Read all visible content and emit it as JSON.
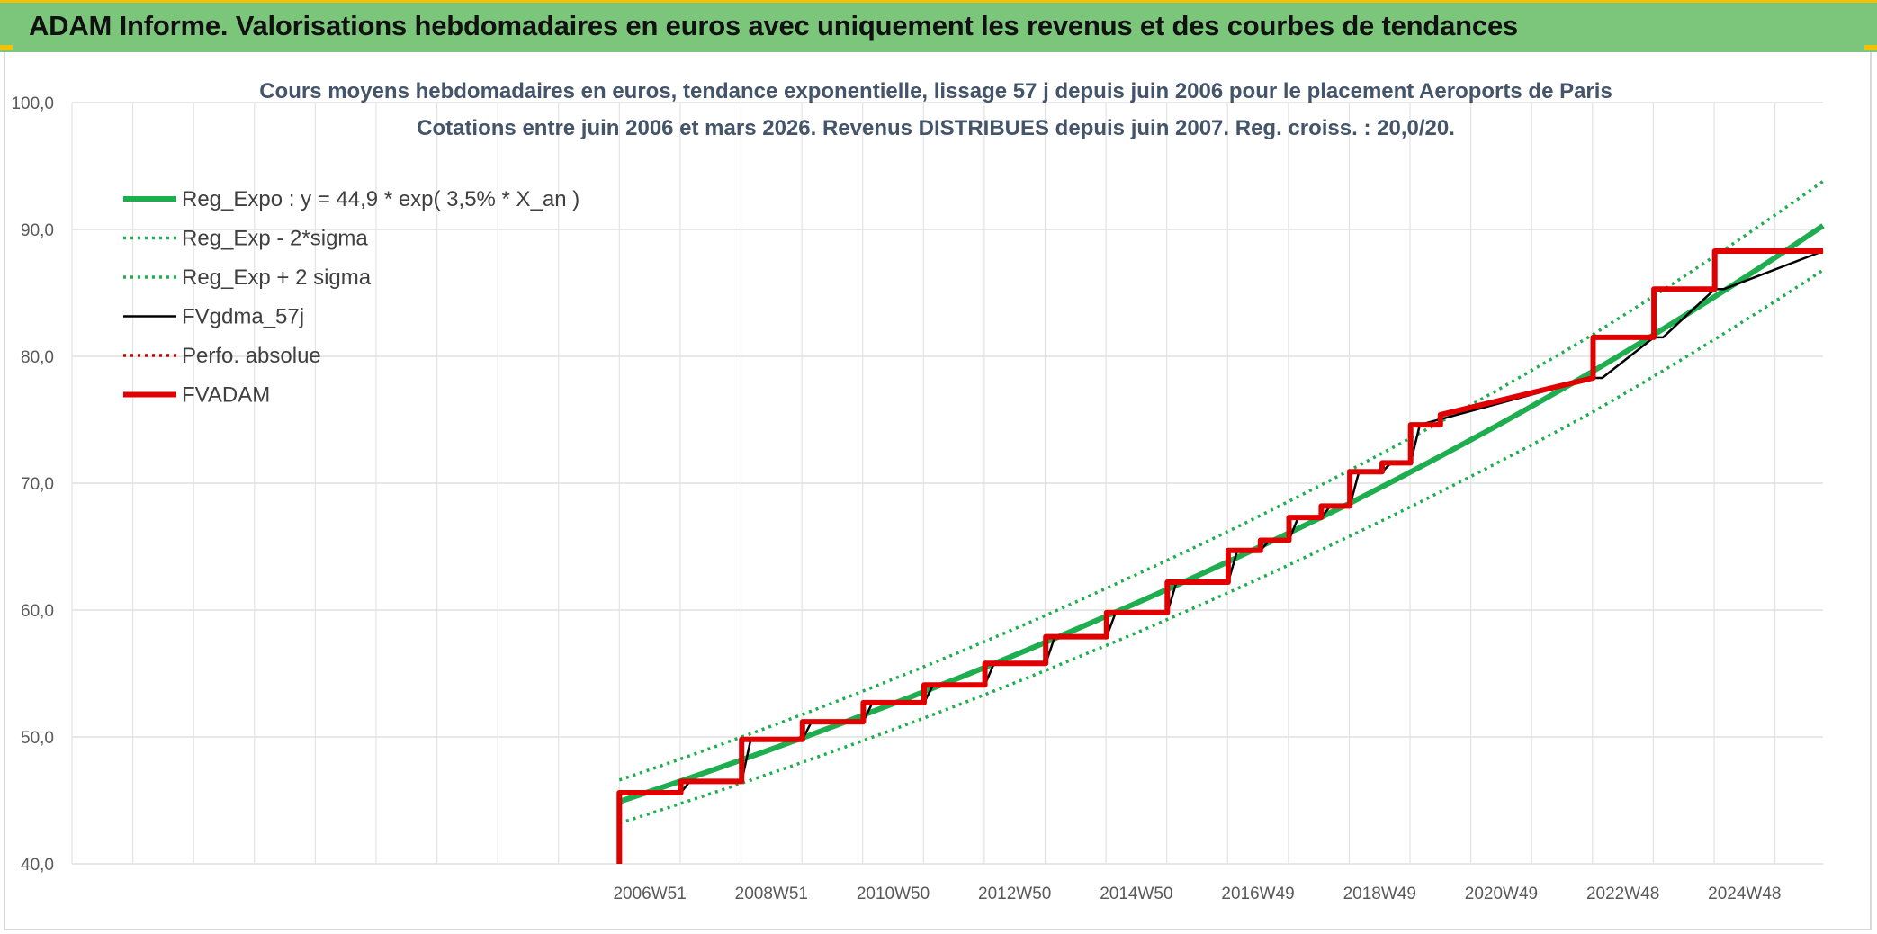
{
  "header": {
    "title": "ADAM Informe. Valorisations hebdomadaires en euros avec uniquement les revenus et des courbes de tendances"
  },
  "chart_data": {
    "type": "line",
    "title": "Cours moyens hebdomadaires en euros, tendance exponentielle, lissage 57 j depuis juin 2006 pour le placement Aeroports de Paris",
    "subtitle": "Cotations entre juin 2006 et mars 2026. Revenus DISTRIBUES depuis juin 2007. Reg. croiss. : 20,0/20.",
    "xlabel": "",
    "ylabel": "",
    "ylim": [
      40,
      100
    ],
    "y_ticks": [
      "40,0",
      "50,0",
      "60,0",
      "70,0",
      "80,0",
      "90,0",
      "100,0"
    ],
    "x_tick_labels": [
      "2006W51",
      "2008W51",
      "2010W50",
      "2012W50",
      "2014W50",
      "2016W49",
      "2018W49",
      "2020W49",
      "2022W48",
      "2024W48"
    ],
    "x_tick_years": [
      2006.96,
      2008.96,
      2010.96,
      2012.96,
      2014.96,
      2016.96,
      2018.96,
      2020.96,
      2022.96,
      2024.96
    ],
    "x_axis_start_year": 1997.46,
    "x_axis_end_year": 2026.25,
    "grid": true,
    "legend_position": "top-left",
    "series": [
      {
        "name": "Reg_Expo : y = 44,9 * exp( 3,5% *  X_an )",
        "color": "#1fae4f",
        "style": "solid-thick",
        "x": [
          2006.46,
          2010.46,
          2014.46,
          2018.46,
          2022.46,
          2026.25
        ],
        "y": [
          44.9,
          51.7,
          59.5,
          68.4,
          78.8,
          90.3
        ]
      },
      {
        "name": "Reg_Exp - 2*sigma",
        "color": "#1fae4f",
        "style": "dotted",
        "x": [
          2006.46,
          2010.46,
          2014.46,
          2018.46,
          2022.46,
          2026.25
        ],
        "y": [
          43.2,
          49.7,
          57.2,
          65.8,
          75.6,
          86.8
        ]
      },
      {
        "name": "Reg_Exp + 2 sigma",
        "color": "#1fae4f",
        "style": "dotted",
        "x": [
          2006.46,
          2010.46,
          2014.46,
          2018.46,
          2022.46,
          2026.25
        ],
        "y": [
          46.6,
          53.6,
          61.7,
          71.0,
          81.7,
          93.8
        ]
      },
      {
        "name": "FVgdma_57j",
        "color": "#000000",
        "style": "solid",
        "x": [
          2006.46,
          2006.55,
          2007.47,
          2007.62,
          2008.47,
          2008.62,
          2009.47,
          2009.62,
          2010.47,
          2010.62,
          2011.47,
          2011.62,
          2012.47,
          2012.62,
          2013.47,
          2013.62,
          2014.47,
          2014.62,
          2015.47,
          2015.62,
          2016.47,
          2016.62,
          2017.0,
          2017.15,
          2017.47,
          2017.62,
          2018.0,
          2018.15,
          2018.47,
          2018.62,
          2019.0,
          2019.15,
          2019.47,
          2019.62,
          2022.47,
          2022.62,
          2023.47,
          2023.62,
          2024.47,
          2024.62,
          2026.25
        ],
        "y": [
          45.6,
          45.6,
          45.6,
          46.5,
          46.5,
          49.8,
          49.8,
          51.2,
          51.2,
          52.7,
          52.7,
          54.1,
          54.1,
          55.8,
          55.8,
          57.9,
          57.9,
          59.8,
          59.8,
          62.2,
          62.2,
          64.7,
          64.7,
          65.5,
          65.5,
          67.3,
          67.3,
          68.2,
          68.2,
          70.9,
          70.9,
          71.6,
          71.6,
          74.6,
          78.3,
          78.3,
          81.5,
          81.5,
          85.3,
          85.3,
          88.3
        ]
      },
      {
        "name": "Perfo. absolue",
        "color": "#d00000",
        "style": "dotted",
        "x": [],
        "y": []
      },
      {
        "name": "FVADAM",
        "color": "#e00000",
        "style": "solid-thick",
        "x": [
          2006.46,
          2006.46,
          2007.47,
          2007.47,
          2008.47,
          2008.47,
          2009.47,
          2009.47,
          2010.47,
          2010.47,
          2011.47,
          2011.47,
          2012.47,
          2012.47,
          2013.47,
          2013.47,
          2014.47,
          2014.47,
          2015.47,
          2015.47,
          2016.47,
          2016.47,
          2017.0,
          2017.0,
          2017.47,
          2017.47,
          2018.0,
          2018.0,
          2018.47,
          2018.47,
          2019.0,
          2019.0,
          2019.47,
          2019.47,
          2019.96,
          2019.96,
          2022.47,
          2022.47,
          2023.47,
          2023.47,
          2024.47,
          2024.47,
          2026.25
        ],
        "y": [
          40.0,
          45.6,
          45.6,
          46.5,
          46.5,
          49.8,
          49.8,
          51.2,
          51.2,
          52.7,
          52.7,
          54.1,
          54.1,
          55.8,
          55.8,
          57.9,
          57.9,
          59.8,
          59.8,
          62.2,
          62.2,
          64.7,
          64.7,
          65.5,
          65.5,
          67.3,
          67.3,
          68.2,
          68.2,
          70.9,
          70.9,
          71.6,
          71.6,
          74.6,
          74.6,
          75.4,
          78.3,
          81.5,
          81.5,
          85.3,
          85.3,
          88.3,
          88.3
        ]
      }
    ]
  }
}
